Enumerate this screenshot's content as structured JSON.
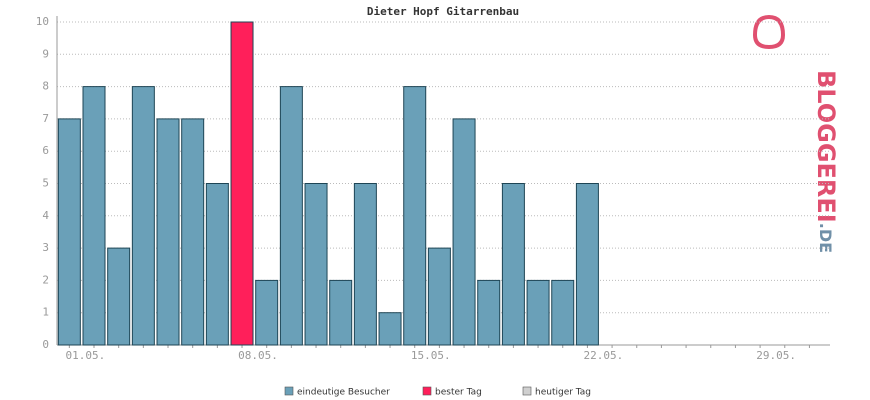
{
  "chart_data": {
    "type": "bar",
    "title": "Dieter Hopf Gitarrenbau",
    "categories": [
      "01.05.",
      null,
      null,
      null,
      null,
      null,
      null,
      "08.05.",
      null,
      null,
      null,
      null,
      null,
      null,
      "15.05.",
      null,
      null,
      null,
      null,
      null,
      null,
      "22.05.",
      null,
      null,
      null,
      null,
      null,
      null,
      "29.05.",
      null,
      null
    ],
    "series": [
      {
        "name": "eindeutige Besucher",
        "color": "#6aa0b8",
        "values": [
          7,
          8,
          3,
          8,
          7,
          7,
          5,
          10,
          2,
          8,
          5,
          2,
          5,
          1,
          8,
          3,
          7,
          2,
          5,
          2,
          2,
          5,
          null,
          null,
          null,
          null,
          null,
          null,
          null,
          null,
          null
        ]
      }
    ],
    "legend": [
      {
        "name": "eindeutige Besucher",
        "color": "#6aa0b8"
      },
      {
        "name": "bester Tag",
        "color": "#ff1f5a"
      },
      {
        "name": "heutiger Tag",
        "color": "#d0d0d0"
      }
    ],
    "ylim": [
      0,
      10
    ],
    "yticks": [
      0,
      1,
      2,
      3,
      4,
      5,
      6,
      7,
      8,
      9,
      10
    ],
    "grid": true,
    "logo": {
      "text": "BLOGGEREI",
      "suffix": ".DE"
    }
  }
}
